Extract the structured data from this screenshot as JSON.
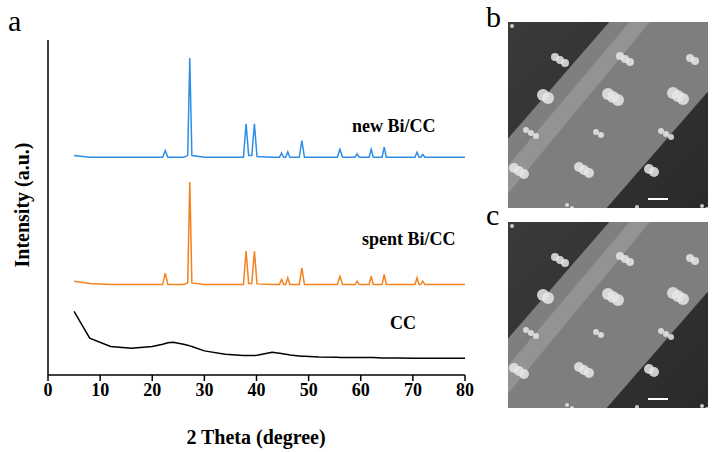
{
  "chart_data": {
    "type": "line",
    "xlabel": "2 Theta (degree)",
    "ylabel": "Intensity (a.u.)",
    "xlim": [
      0,
      80
    ],
    "xticks": [
      0,
      10,
      20,
      30,
      40,
      50,
      60,
      70,
      80
    ],
    "ylim": [
      0,
      100
    ],
    "tick_labels": "x",
    "grid": false,
    "x": [
      5,
      8,
      12,
      16,
      20,
      22,
      22.5,
      23,
      24,
      26,
      26.8,
      27.2,
      27.6,
      30,
      34,
      37.5,
      38,
      38.5,
      39.1,
      39.6,
      40.1,
      43,
      44.4,
      44.8,
      45.2,
      45.6,
      46,
      46.4,
      48.2,
      48.7,
      49.2,
      52,
      55.5,
      56,
      56.5,
      58.9,
      59.3,
      59.7,
      61.6,
      62,
      62.4,
      64.1,
      64.5,
      64.9,
      67,
      70.4,
      70.8,
      71.2,
      71.5,
      71.9,
      72.3,
      76,
      80
    ],
    "series": [
      {
        "name": "new Bi/CC",
        "color": "#2f8ee8",
        "values": [
          65.5,
          65,
          65,
          65,
          65,
          65,
          67,
          65,
          65,
          65,
          65.5,
          94.6,
          65.5,
          65,
          65,
          65,
          75,
          65.5,
          65.5,
          75,
          65.2,
          65,
          65,
          66.3,
          65,
          65,
          66.6,
          65,
          65,
          70,
          65,
          65,
          65,
          67.4,
          65,
          65,
          66,
          65,
          65,
          67.4,
          65,
          65,
          68,
          65,
          65,
          65,
          66.5,
          65,
          65,
          65.8,
          65,
          65,
          65
        ]
      },
      {
        "name": "spent Bi/CC",
        "color": "#f5821f",
        "values": [
          28,
          27.3,
          27,
          27,
          27,
          27,
          30.4,
          27,
          27,
          27,
          27.5,
          57.6,
          27.5,
          27,
          27,
          27,
          37,
          27.3,
          27.3,
          37,
          27.2,
          27,
          27,
          28.5,
          27,
          27,
          29,
          27,
          27,
          32,
          27,
          27,
          27,
          29.5,
          27,
          27,
          28,
          27,
          27,
          29.5,
          27,
          27,
          30,
          27,
          27,
          27,
          29,
          27,
          27,
          28,
          27,
          27,
          27
        ]
      },
      {
        "name": "CC",
        "color": "#000000",
        "values": [
          19,
          11,
          8.5,
          8,
          8.5,
          9.2,
          9.4,
          9.6,
          9.8,
          9.2,
          8.9,
          8.7,
          8.5,
          7.2,
          6.2,
          5.8,
          5.8,
          5.8,
          5.8,
          5.8,
          5.9,
          6.8,
          6.5,
          6.4,
          6.3,
          6.2,
          6.1,
          6,
          5.7,
          5.6,
          5.6,
          5.4,
          5.3,
          5.2,
          5.2,
          5.2,
          5.2,
          5.2,
          5.2,
          5.2,
          5.2,
          5.1,
          5.1,
          5.1,
          5.1,
          5,
          5,
          5,
          5,
          5,
          5,
          5,
          5
        ]
      }
    ]
  },
  "panel_labels": [
    "a",
    "b",
    "c"
  ]
}
